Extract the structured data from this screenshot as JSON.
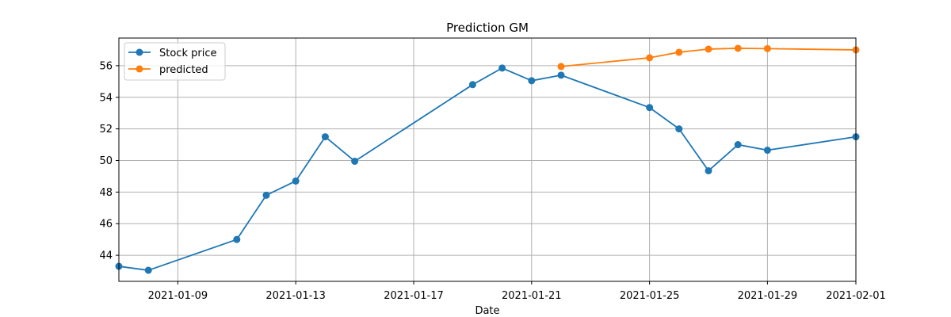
{
  "chart_data": {
    "type": "line",
    "title": "Prediction GM",
    "xlabel": "Date",
    "ylabel": "",
    "xlim": [
      "2021-01-07",
      "2021-02-01"
    ],
    "ylim": [
      42.35,
      57.75
    ],
    "x_ticks": [
      "2021-01-09",
      "2021-01-13",
      "2021-01-17",
      "2021-01-21",
      "2021-01-25",
      "2021-01-29",
      "2021-02-01"
    ],
    "y_ticks": [
      44,
      46,
      48,
      50,
      52,
      54,
      56
    ],
    "grid": true,
    "legend_position": "top-left",
    "series": [
      {
        "name": "Stock price",
        "color": "#1f77b4",
        "marker": "circle",
        "x": [
          "2021-01-07",
          "2021-01-08",
          "2021-01-11",
          "2021-01-12",
          "2021-01-13",
          "2021-01-14",
          "2021-01-15",
          "2021-01-19",
          "2021-01-20",
          "2021-01-21",
          "2021-01-22",
          "2021-01-25",
          "2021-01-26",
          "2021-01-27",
          "2021-01-28",
          "2021-01-29",
          "2021-02-01"
        ],
        "y": [
          43.3,
          43.05,
          45.0,
          47.8,
          48.7,
          51.5,
          49.95,
          54.8,
          55.85,
          55.05,
          55.4,
          53.35,
          52.0,
          49.35,
          51.0,
          50.65,
          51.5
        ]
      },
      {
        "name": "predicted",
        "color": "#ff7f0e",
        "marker": "circle",
        "x": [
          "2021-01-22",
          "2021-01-25",
          "2021-01-26",
          "2021-01-27",
          "2021-01-28",
          "2021-01-29",
          "2021-02-01"
        ],
        "y": [
          55.95,
          56.5,
          56.85,
          57.05,
          57.1,
          57.08,
          57.0
        ]
      }
    ]
  }
}
